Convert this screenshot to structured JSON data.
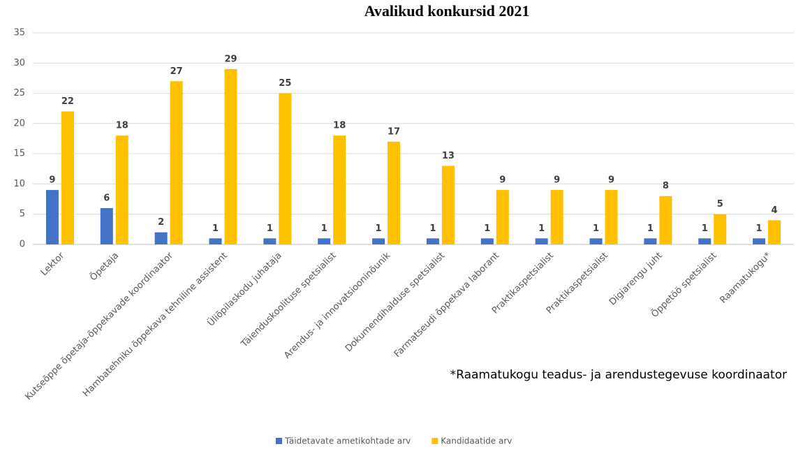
{
  "chart_data": {
    "type": "bar",
    "title": "Avalikud konkursid 2021",
    "categories": [
      "Lektor",
      "Õpetaja",
      "Kutseõppe õpetaja-õppekavade koordinaator",
      "Hambatehniku õppekava tehniline assistent",
      "Üliõpilaskodu juhataja",
      "Täienduskoolituse spetsialist",
      "Arendus- ja innovatsiooninõunik",
      "Dokumendihalduse spetsialist",
      "Farmatseudi õppekava laborant",
      "Praktikaspetsialist",
      "Praktikaspetsialist",
      "Digiarengu juht",
      "Õppetöö spetsialist",
      "Raamatukogu*"
    ],
    "series": [
      {
        "name": "Täidetavate ametikohtade arv",
        "color": "#4472c4",
        "values": [
          9,
          6,
          2,
          1,
          1,
          1,
          1,
          1,
          1,
          1,
          1,
          1,
          1,
          1
        ]
      },
      {
        "name": "Kandidaatide arv",
        "color": "#ffc000",
        "values": [
          22,
          18,
          27,
          29,
          25,
          18,
          17,
          13,
          9,
          9,
          9,
          8,
          5,
          4
        ]
      }
    ],
    "ylim": [
      0,
      35
    ],
    "yticks": [
      0,
      5,
      10,
      15,
      20,
      25,
      30,
      35
    ],
    "grid": true,
    "legend": "bottom",
    "annotation": "*Raamatukogu teadus- ja arendustegevuse koordinaator"
  }
}
